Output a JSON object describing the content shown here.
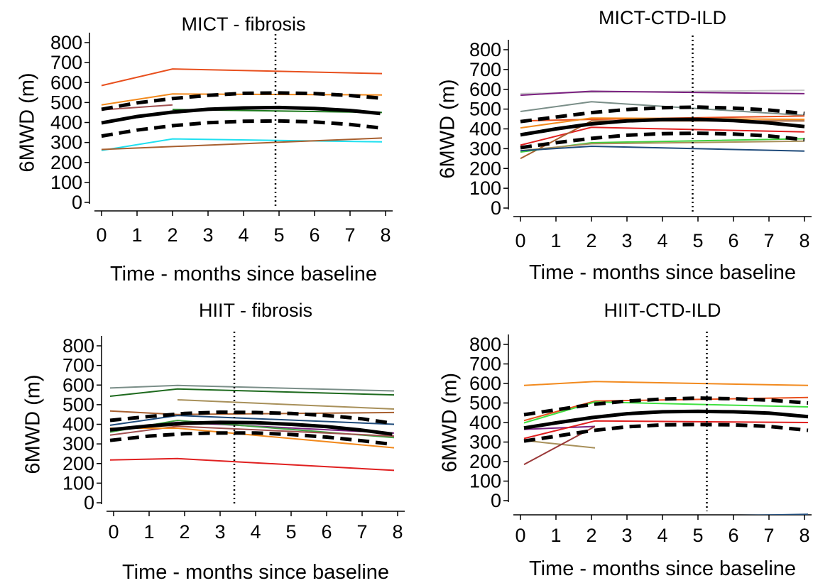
{
  "chart_data": [
    {
      "type": "line",
      "title": "MICT - fibrosis",
      "xlabel": "Time - months since baseline",
      "ylabel": "6MWD (m)",
      "xlim": [
        0,
        8
      ],
      "ylim": [
        0,
        800
      ],
      "xticks": [
        "0",
        "1",
        "2",
        "3",
        "4",
        "5",
        "6",
        "7",
        "8"
      ],
      "yticks": [
        "0",
        "100",
        "200",
        "300",
        "400",
        "500",
        "600",
        "700",
        "800"
      ],
      "reference_line_x": 4.9,
      "mean_curve": [
        [
          0,
          398
        ],
        [
          1,
          430
        ],
        [
          2,
          452
        ],
        [
          3,
          466
        ],
        [
          4,
          473
        ],
        [
          5,
          475
        ],
        [
          6,
          470
        ],
        [
          7,
          460
        ],
        [
          7.85,
          445
        ]
      ],
      "ci_upper": [
        [
          0,
          466
        ],
        [
          1,
          498
        ],
        [
          2,
          520
        ],
        [
          3,
          536
        ],
        [
          4,
          546
        ],
        [
          5,
          548
        ],
        [
          6,
          545
        ],
        [
          7,
          535
        ],
        [
          7.85,
          522
        ]
      ],
      "ci_lower": [
        [
          0,
          332
        ],
        [
          1,
          362
        ],
        [
          2,
          384
        ],
        [
          3,
          399
        ],
        [
          4,
          406
        ],
        [
          5,
          408
        ],
        [
          6,
          403
        ],
        [
          7,
          390
        ],
        [
          7.85,
          373
        ]
      ],
      "individual_series": [
        {
          "color": "#e8501e",
          "points": [
            [
              0,
              585
            ],
            [
              2,
              668
            ],
            [
              7.9,
              645
            ]
          ]
        },
        {
          "color": "#f28a1e",
          "points": [
            [
              0,
              488
            ],
            [
              2,
              543
            ],
            [
              7.9,
              538
            ]
          ]
        },
        {
          "color": "#a05050",
          "points": [
            [
              0,
              463
            ],
            [
              2,
              488
            ]
          ]
        },
        {
          "color": "#1e7a1e",
          "points": [
            [
              2,
              465
            ],
            [
              7.9,
              450
            ]
          ]
        },
        {
          "color": "#20e0f0",
          "points": [
            [
              0,
              260
            ],
            [
              2,
              318
            ],
            [
              7.9,
              303
            ]
          ]
        },
        {
          "color": "#a86030",
          "points": [
            [
              0,
              265
            ],
            [
              7.9,
              322
            ]
          ]
        }
      ]
    },
    {
      "type": "line",
      "title": "MICT-CTD-ILD",
      "xlabel": "Time - months since baseline",
      "ylabel": "6MWD (m)",
      "xlim": [
        0,
        8
      ],
      "ylim": [
        0,
        800
      ],
      "xticks": [
        "0",
        "1",
        "2",
        "3",
        "4",
        "5",
        "6",
        "7",
        "8"
      ],
      "yticks": [
        "0",
        "100",
        "200",
        "300",
        "400",
        "500",
        "600",
        "700",
        "800"
      ],
      "reference_line_x": 4.85,
      "mean_curve": [
        [
          0,
          370
        ],
        [
          1,
          400
        ],
        [
          2,
          425
        ],
        [
          3,
          440
        ],
        [
          4,
          447
        ],
        [
          5,
          448
        ],
        [
          6,
          442
        ],
        [
          7,
          430
        ],
        [
          8,
          412
        ]
      ],
      "ci_upper": [
        [
          0,
          437
        ],
        [
          1,
          460
        ],
        [
          2,
          482
        ],
        [
          3,
          498
        ],
        [
          4,
          507
        ],
        [
          5,
          510
        ],
        [
          6,
          505
        ],
        [
          7,
          495
        ],
        [
          8,
          478
        ]
      ],
      "ci_lower": [
        [
          0,
          305
        ],
        [
          1,
          330
        ],
        [
          2,
          352
        ],
        [
          3,
          368
        ],
        [
          4,
          376
        ],
        [
          5,
          378
        ],
        [
          6,
          374
        ],
        [
          7,
          364
        ],
        [
          8,
          346
        ]
      ],
      "individual_series": [
        {
          "color": "#c8c8c8",
          "points": [
            [
              0,
              578
            ],
            [
              2,
              585
            ],
            [
              8,
              595
            ]
          ]
        },
        {
          "color": "#7a2080",
          "points": [
            [
              0,
              570
            ],
            [
              2,
              590
            ],
            [
              8,
              578
            ]
          ]
        },
        {
          "color": "#7a8e88",
          "points": [
            [
              0,
              488
            ],
            [
              2,
              537
            ],
            [
              8,
              468
            ]
          ]
        },
        {
          "color": "#e8501e",
          "points": [
            [
              0,
              440
            ],
            [
              2,
              448
            ],
            [
              8,
              465
            ]
          ]
        },
        {
          "color": "#f28a1e",
          "points": [
            [
              0,
              405
            ],
            [
              2,
              455
            ],
            [
              8,
              448
            ]
          ]
        },
        {
          "color": "#e02020",
          "points": [
            [
              0,
              318
            ],
            [
              2,
              408
            ],
            [
              8,
              385
            ]
          ]
        },
        {
          "color": "#a86030",
          "points": [
            [
              0,
              250
            ],
            [
              2,
              440
            ],
            [
              8,
              440
            ]
          ]
        },
        {
          "color": "#40d040",
          "points": [
            [
              0,
              283
            ],
            [
              2,
              330
            ],
            [
              8,
              350
            ]
          ]
        },
        {
          "color": "#a8905a",
          "points": [
            [
              0,
              290
            ],
            [
              2,
              325
            ],
            [
              8,
              338
            ]
          ]
        },
        {
          "color": "#1e4a7a",
          "points": [
            [
              0,
              290
            ],
            [
              2,
              312
            ],
            [
              8,
              288
            ]
          ]
        }
      ]
    },
    {
      "type": "line",
      "title": "HIIT - fibrosis",
      "xlabel": "Time - months since baseline",
      "ylabel": "6MWD (m)",
      "xlim": [
        0,
        8
      ],
      "ylim": [
        0,
        800
      ],
      "xticks": [
        "0",
        "1",
        "2",
        "3",
        "4",
        "5",
        "6",
        "7",
        "8"
      ],
      "yticks": [
        "0",
        "100",
        "200",
        "300",
        "400",
        "500",
        "600",
        "700",
        "800"
      ],
      "reference_line_x": 3.4,
      "mean_curve": [
        [
          -0.1,
          372
        ],
        [
          1,
          392
        ],
        [
          2,
          405
        ],
        [
          3,
          410
        ],
        [
          4,
          408
        ],
        [
          5,
          400
        ],
        [
          6,
          388
        ],
        [
          7,
          370
        ],
        [
          7.85,
          350
        ]
      ],
      "ci_upper": [
        [
          -0.1,
          420
        ],
        [
          1,
          440
        ],
        [
          2,
          455
        ],
        [
          3,
          462
        ],
        [
          4,
          460
        ],
        [
          5,
          455
        ],
        [
          6,
          445
        ],
        [
          7,
          428
        ],
        [
          7.85,
          405
        ]
      ],
      "ci_lower": [
        [
          -0.1,
          318
        ],
        [
          1,
          340
        ],
        [
          2,
          352
        ],
        [
          3,
          356
        ],
        [
          4,
          356
        ],
        [
          5,
          348
        ],
        [
          6,
          335
        ],
        [
          7,
          316
        ],
        [
          7.85,
          298
        ]
      ],
      "individual_series": [
        {
          "color": "#7a8e88",
          "points": [
            [
              -0.1,
              585
            ],
            [
              1.8,
              598
            ],
            [
              7.9,
              570
            ]
          ]
        },
        {
          "color": "#1e6a1e",
          "points": [
            [
              -0.1,
              543
            ],
            [
              1.8,
              580
            ],
            [
              7.9,
              550
            ]
          ]
        },
        {
          "color": "#a8905a",
          "points": [
            [
              1.8,
              525
            ],
            [
              7.9,
              478
            ]
          ]
        },
        {
          "color": "#a86030",
          "points": [
            [
              -0.1,
              468
            ],
            [
              1.8,
              450
            ],
            [
              7.9,
              460
            ]
          ]
        },
        {
          "color": "#1e4a7a",
          "points": [
            [
              -0.1,
              395
            ],
            [
              1.8,
              445
            ],
            [
              7.9,
              400
            ]
          ]
        },
        {
          "color": "#7a2080",
          "points": [
            [
              -0.1,
              375
            ],
            [
              1.8,
              410
            ],
            [
              7.9,
              355
            ]
          ]
        },
        {
          "color": "#40a040",
          "points": [
            [
              -0.1,
              360
            ],
            [
              1.8,
              420
            ],
            [
              7.9,
              332
            ]
          ]
        },
        {
          "color": "#a05050",
          "points": [
            [
              -0.1,
              345
            ],
            [
              1.8,
              390
            ],
            [
              7.9,
              340
            ]
          ]
        },
        {
          "color": "#f28a1e",
          "points": [
            [
              -0.1,
              380
            ],
            [
              1.8,
              380
            ],
            [
              7.9,
              280
            ]
          ]
        },
        {
          "color": "#e02020",
          "points": [
            [
              -0.1,
              218
            ],
            [
              1.8,
              225
            ],
            [
              7.9,
              165
            ]
          ]
        }
      ]
    },
    {
      "type": "line",
      "title": "HIIT-CTD-ILD",
      "xlabel": "Time - months since baseline",
      "ylabel": "6MWD (m)",
      "xlim": [
        0,
        8
      ],
      "ylim": [
        0,
        800
      ],
      "xticks": [
        "0",
        "1",
        "2",
        "3",
        "4",
        "5",
        "6",
        "7",
        "8"
      ],
      "yticks": [
        "0",
        "100",
        "200",
        "300",
        "400",
        "500",
        "600",
        "700",
        "800"
      ],
      "reference_line_x": 5.25,
      "mean_curve": [
        [
          0.1,
          372
        ],
        [
          1,
          398
        ],
        [
          2,
          425
        ],
        [
          3,
          445
        ],
        [
          4,
          455
        ],
        [
          5,
          457
        ],
        [
          6,
          455
        ],
        [
          7,
          448
        ],
        [
          8.1,
          430
        ]
      ],
      "ci_upper": [
        [
          0.1,
          440
        ],
        [
          1,
          465
        ],
        [
          2,
          492
        ],
        [
          3,
          510
        ],
        [
          4,
          520
        ],
        [
          5,
          525
        ],
        [
          6,
          522
        ],
        [
          7,
          515
        ],
        [
          8.1,
          500
        ]
      ],
      "ci_lower": [
        [
          0.1,
          305
        ],
        [
          1,
          330
        ],
        [
          2,
          358
        ],
        [
          3,
          378
        ],
        [
          4,
          388
        ],
        [
          5,
          390
        ],
        [
          6,
          388
        ],
        [
          7,
          380
        ],
        [
          8.1,
          360
        ]
      ],
      "individual_series": [
        {
          "color": "#f28a1e",
          "points": [
            [
              0.1,
              590
            ],
            [
              2.1,
              610
            ],
            [
              8.1,
              590
            ]
          ]
        },
        {
          "color": "#e8501e",
          "points": [
            [
              0.1,
              410
            ],
            [
              2.1,
              510
            ],
            [
              8.1,
              528
            ]
          ]
        },
        {
          "color": "#40e040",
          "points": [
            [
              0.1,
              398
            ],
            [
              2.1,
              505
            ],
            [
              8.1,
              480
            ]
          ]
        },
        {
          "color": "#7a2080",
          "points": [
            [
              0.1,
              365
            ],
            [
              2.1,
              380
            ]
          ]
        },
        {
          "color": "#e02020",
          "points": [
            [
              0.1,
              318
            ],
            [
              2.1,
              408
            ],
            [
              8.1,
              400
            ]
          ]
        },
        {
          "color": "#a8905a",
          "points": [
            [
              0.1,
              308
            ],
            [
              2.1,
              270
            ]
          ]
        },
        {
          "color": "#9a3838",
          "points": [
            [
              0.1,
              185
            ],
            [
              2.1,
              380
            ]
          ]
        },
        {
          "color": "#1e4a7a",
          "points": [
            [
              1.8,
              -90
            ],
            [
              8.1,
              -70
            ]
          ]
        }
      ]
    }
  ]
}
